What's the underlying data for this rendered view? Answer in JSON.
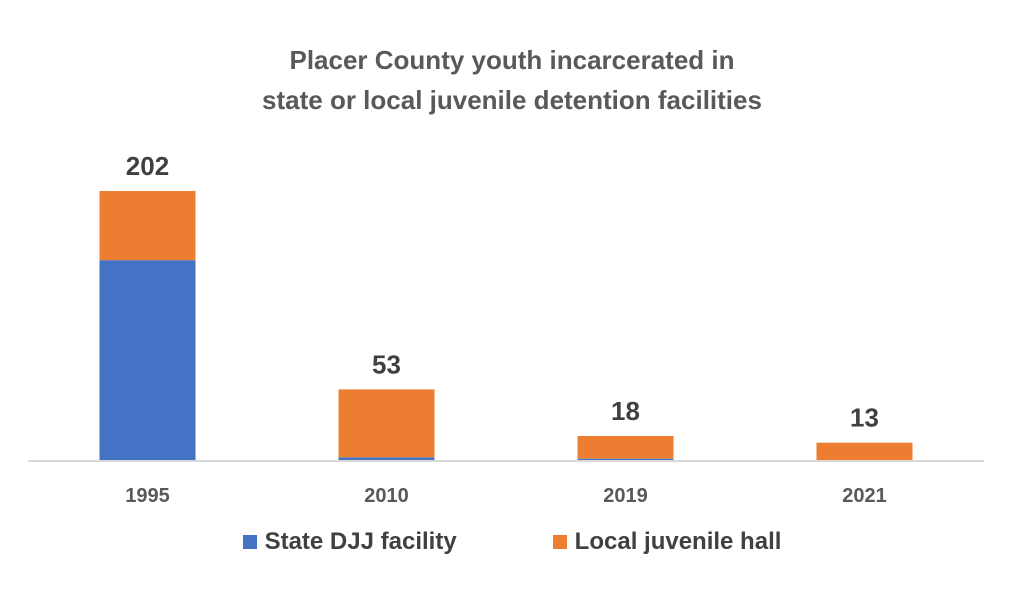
{
  "chart_data": {
    "type": "bar",
    "stacked": true,
    "title_lines": [
      "Placer County youth incarcerated in",
      "state or local juvenile detention facilities"
    ],
    "categories": [
      "1995",
      "2010",
      "2019",
      "2021"
    ],
    "series": [
      {
        "name": "State DJJ facility",
        "color": "#4472C4",
        "values": [
          150,
          2,
          1,
          0
        ]
      },
      {
        "name": "Local juvenile hall",
        "color": "#ED7D31",
        "values": [
          52,
          51,
          17,
          13
        ]
      }
    ],
    "totals": [
      "202",
      "53",
      "18",
      "13"
    ],
    "ylim": [
      0,
      202
    ],
    "grid": false,
    "legend": "bottom",
    "xlabel": "",
    "ylabel": ""
  }
}
